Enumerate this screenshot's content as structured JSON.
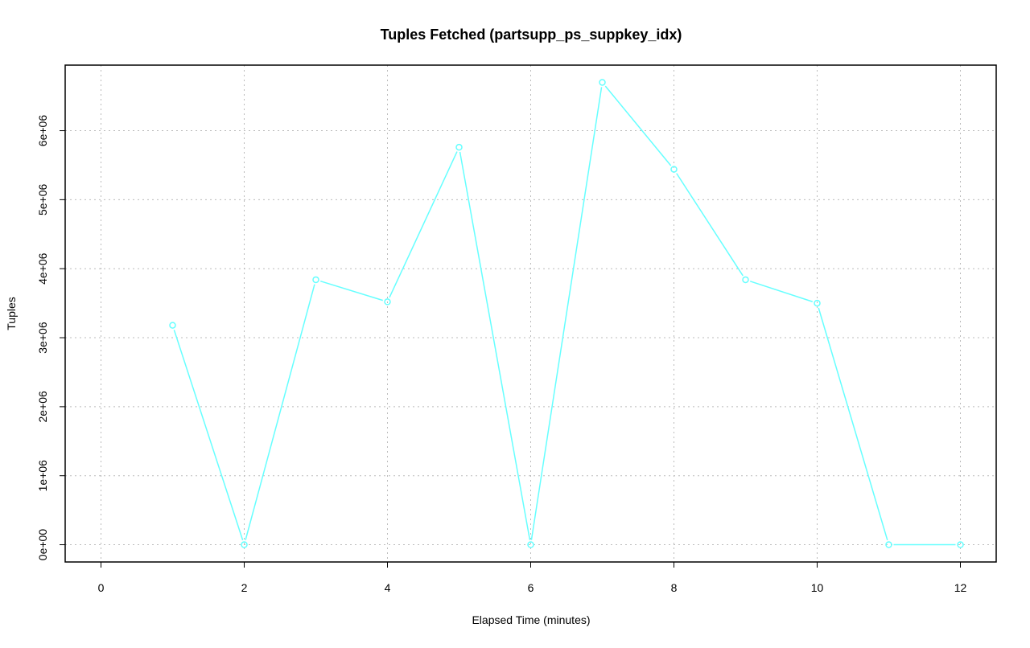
{
  "chart_data": {
    "type": "line",
    "title": "Tuples Fetched (partsupp_ps_suppkey_idx)",
    "xlabel": "Elapsed Time (minutes)",
    "ylabel": "Tuples",
    "xlim": [
      -0.5,
      12.5
    ],
    "ylim": [
      -250000,
      6950000
    ],
    "x_ticks": [
      0,
      2,
      4,
      6,
      8,
      10,
      12
    ],
    "x_tick_labels": [
      "0",
      "2",
      "4",
      "6",
      "8",
      "10",
      "12"
    ],
    "y_ticks": [
      0,
      1000000,
      2000000,
      3000000,
      4000000,
      5000000,
      6000000
    ],
    "y_tick_labels": [
      "0e+00",
      "1e+06",
      "2e+06",
      "3e+06",
      "4e+06",
      "5e+06",
      "6e+06"
    ],
    "grid": true,
    "series": [
      {
        "color": "#66ffff",
        "x": [
          1,
          2,
          3,
          4,
          5,
          6,
          7,
          8,
          9,
          10,
          11,
          12
        ],
        "y": [
          3180000,
          0,
          3840000,
          3520000,
          5760000,
          0,
          6700000,
          5440000,
          3840000,
          3500000,
          0,
          0
        ]
      }
    ]
  }
}
